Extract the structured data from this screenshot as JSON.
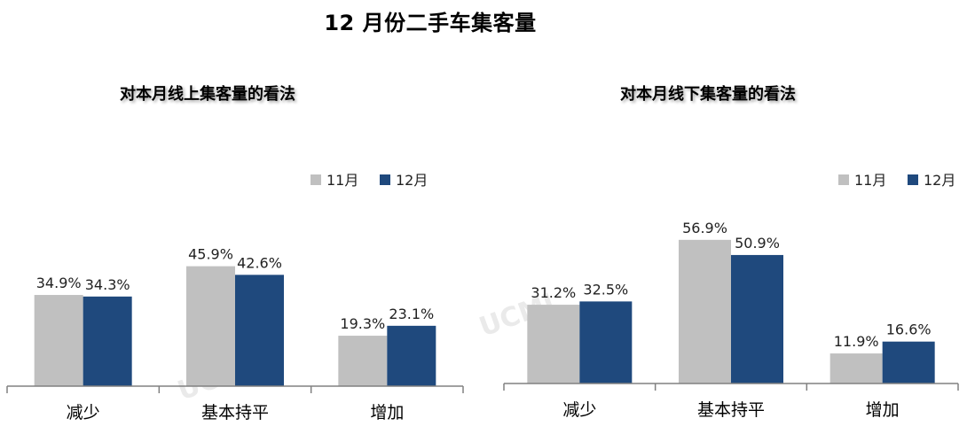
{
  "title": "12 月份二手车集客量",
  "watermark": "UCMI",
  "colors": {
    "nov": "#c0c0c0",
    "dec": "#1f497d"
  },
  "chart_data": [
    {
      "type": "bar",
      "title": "对本月线上集客量的看法",
      "categories": [
        "减少",
        "基本持平",
        "增加"
      ],
      "series": [
        {
          "name": "11月",
          "values": [
            34.9,
            45.9,
            19.3
          ],
          "labels": [
            "34.9%",
            "45.9%",
            "19.3%"
          ]
        },
        {
          "name": "12月",
          "values": [
            34.3,
            42.6,
            23.1
          ],
          "labels": [
            "34.3%",
            "42.6%",
            "23.1%"
          ]
        }
      ],
      "ylim": [
        0,
        60
      ],
      "grid": false,
      "legend": "top-right"
    },
    {
      "type": "bar",
      "title": "对本月线下集客量的看法",
      "categories": [
        "减少",
        "基本持平",
        "增加"
      ],
      "series": [
        {
          "name": "11月",
          "values": [
            31.2,
            56.9,
            11.9
          ],
          "labels": [
            "31.2%",
            "56.9%",
            "11.9%"
          ]
        },
        {
          "name": "12月",
          "values": [
            32.5,
            50.9,
            16.6
          ],
          "labels": [
            "32.5%",
            "50.9%",
            "16.6%"
          ]
        }
      ],
      "ylim": [
        0,
        60
      ],
      "grid": false,
      "legend": "top-right"
    }
  ]
}
